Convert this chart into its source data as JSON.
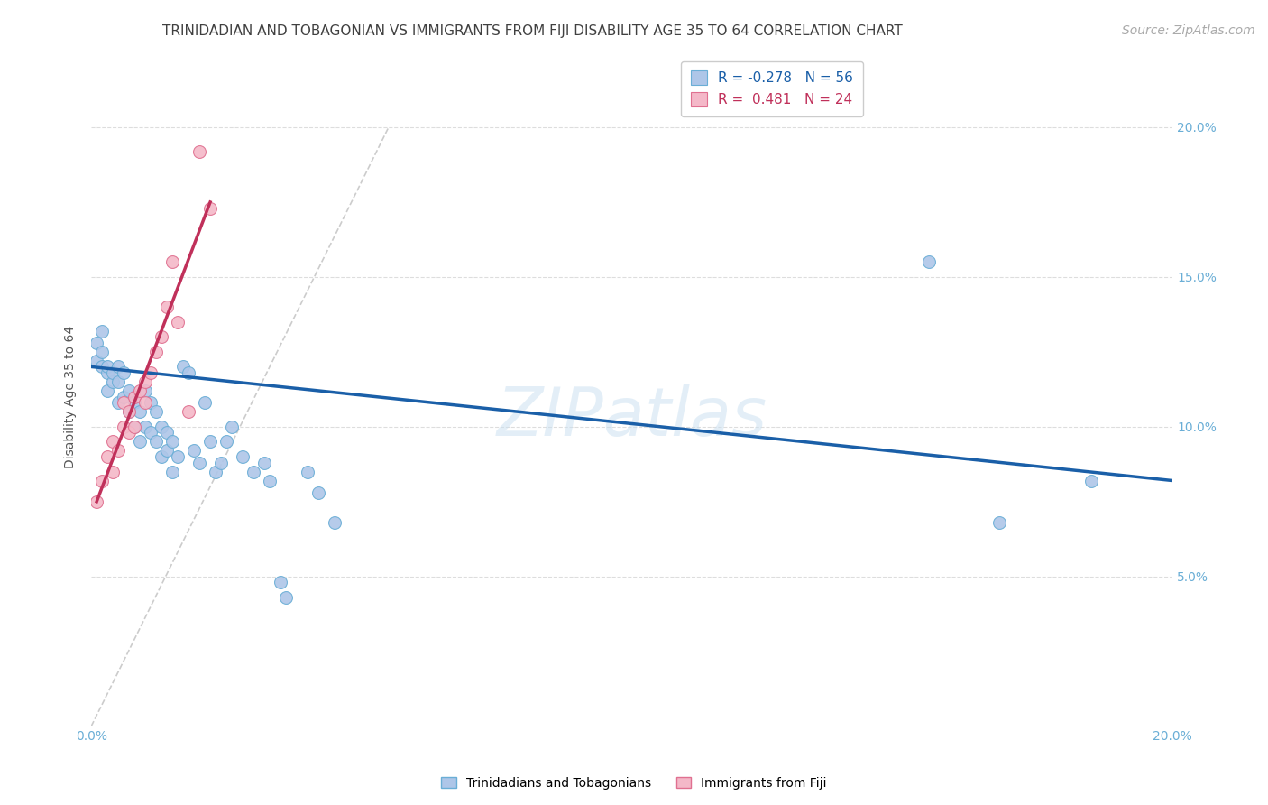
{
  "title": "TRINIDADIAN AND TOBAGONIAN VS IMMIGRANTS FROM FIJI DISABILITY AGE 35 TO 64 CORRELATION CHART",
  "source": "Source: ZipAtlas.com",
  "ylabel": "Disability Age 35 to 64",
  "watermark": "ZIPatlas",
  "legend_blue_r": "R = -0.278",
  "legend_blue_n": "N = 56",
  "legend_pink_r": "R =  0.481",
  "legend_pink_n": "N = 24",
  "legend_blue_label": "Trinidadians and Tobagonians",
  "legend_pink_label": "Immigrants from Fiji",
  "xlim": [
    0.0,
    0.2
  ],
  "ylim": [
    0.0,
    0.22
  ],
  "x_ticks": [
    0.0,
    0.05,
    0.1,
    0.15,
    0.2
  ],
  "y_ticks": [
    0.0,
    0.05,
    0.1,
    0.15,
    0.2
  ],
  "y_tick_labels": [
    "",
    "5.0%",
    "10.0%",
    "15.0%",
    "20.0%"
  ],
  "x_tick_labels": [
    "0.0%",
    "",
    "",
    "",
    "20.0%"
  ],
  "blue_color": "#aec6e8",
  "blue_edge_color": "#6aaed6",
  "pink_color": "#f4b8c8",
  "pink_edge_color": "#e07090",
  "blue_line_color": "#1a5fa8",
  "pink_line_color": "#c0305a",
  "ref_line_color": "#cccccc",
  "grid_color": "#dddddd",
  "title_color": "#404040",
  "axis_label_color": "#6aaed6",
  "blue_scatter_x": [
    0.001,
    0.001,
    0.002,
    0.002,
    0.002,
    0.003,
    0.003,
    0.003,
    0.004,
    0.004,
    0.005,
    0.005,
    0.005,
    0.006,
    0.006,
    0.007,
    0.007,
    0.008,
    0.008,
    0.009,
    0.009,
    0.01,
    0.01,
    0.011,
    0.011,
    0.012,
    0.012,
    0.013,
    0.013,
    0.014,
    0.014,
    0.015,
    0.015,
    0.016,
    0.017,
    0.018,
    0.019,
    0.02,
    0.021,
    0.022,
    0.023,
    0.024,
    0.025,
    0.026,
    0.028,
    0.03,
    0.032,
    0.033,
    0.035,
    0.036,
    0.04,
    0.042,
    0.045,
    0.155,
    0.168,
    0.185
  ],
  "blue_scatter_y": [
    0.128,
    0.122,
    0.132,
    0.12,
    0.125,
    0.118,
    0.112,
    0.12,
    0.115,
    0.118,
    0.108,
    0.115,
    0.12,
    0.11,
    0.118,
    0.105,
    0.112,
    0.1,
    0.108,
    0.095,
    0.105,
    0.1,
    0.112,
    0.098,
    0.108,
    0.095,
    0.105,
    0.09,
    0.1,
    0.092,
    0.098,
    0.085,
    0.095,
    0.09,
    0.12,
    0.118,
    0.092,
    0.088,
    0.108,
    0.095,
    0.085,
    0.088,
    0.095,
    0.1,
    0.09,
    0.085,
    0.088,
    0.082,
    0.048,
    0.043,
    0.085,
    0.078,
    0.068,
    0.155,
    0.068,
    0.082
  ],
  "pink_scatter_x": [
    0.001,
    0.002,
    0.003,
    0.004,
    0.004,
    0.005,
    0.006,
    0.006,
    0.007,
    0.007,
    0.008,
    0.008,
    0.009,
    0.01,
    0.01,
    0.011,
    0.012,
    0.013,
    0.014,
    0.015,
    0.016,
    0.018,
    0.02,
    0.022
  ],
  "pink_scatter_y": [
    0.075,
    0.082,
    0.09,
    0.085,
    0.095,
    0.092,
    0.1,
    0.108,
    0.098,
    0.105,
    0.11,
    0.1,
    0.112,
    0.108,
    0.115,
    0.118,
    0.125,
    0.13,
    0.14,
    0.155,
    0.135,
    0.105,
    0.192,
    0.173
  ],
  "blue_line_x": [
    0.0,
    0.2
  ],
  "blue_line_y": [
    0.12,
    0.082
  ],
  "pink_line_x": [
    0.001,
    0.022
  ],
  "pink_line_y": [
    0.075,
    0.175
  ],
  "ref_line_x": [
    0.0,
    0.055
  ],
  "ref_line_y": [
    0.0,
    0.2
  ],
  "marker_size": 100,
  "title_fontsize": 11,
  "label_fontsize": 10,
  "tick_fontsize": 10,
  "legend_fontsize": 11,
  "source_fontsize": 10
}
